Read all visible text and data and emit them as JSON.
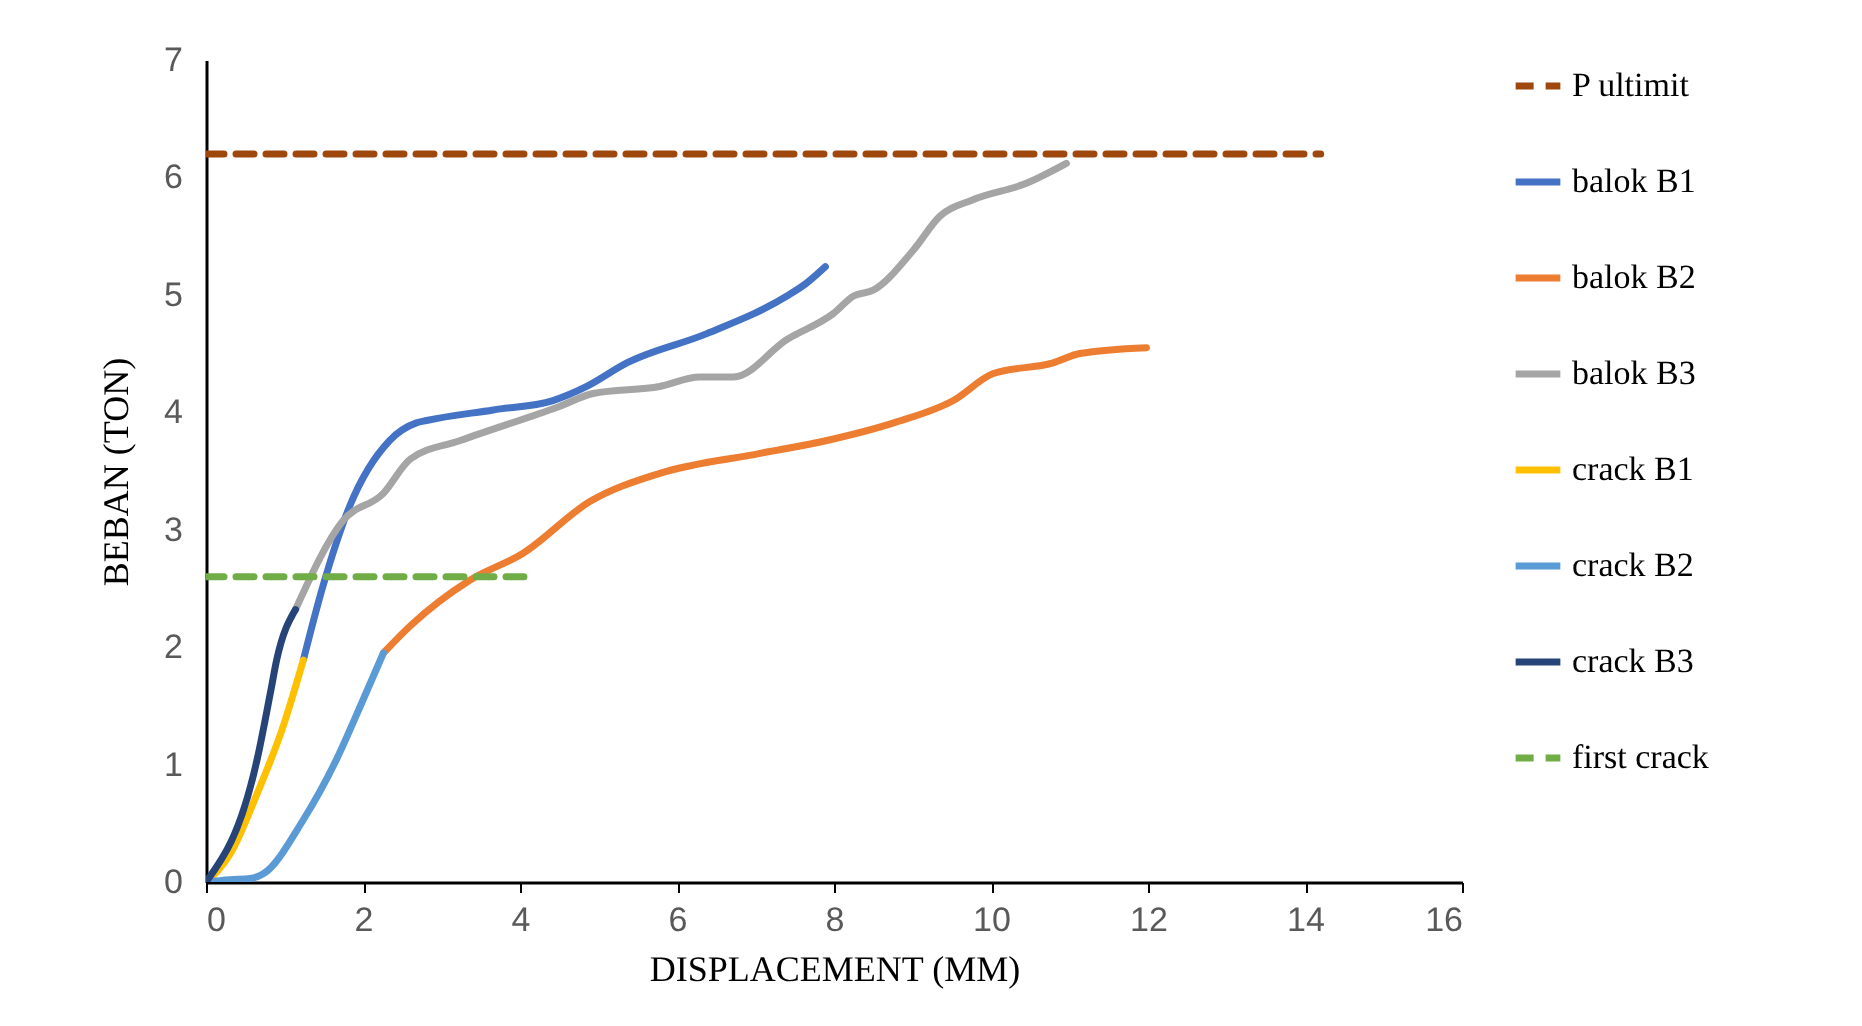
{
  "chart_data": {
    "type": "line",
    "xlabel": "DISPLACEMENT (MM)",
    "ylabel": "BEBAN (TON)",
    "xlim": [
      0,
      16
    ],
    "xticks": [
      0,
      2,
      4,
      6,
      8,
      10,
      12,
      14,
      16
    ],
    "ylim": [
      0,
      7
    ],
    "yticks": [
      0,
      1,
      2,
      3,
      4,
      5,
      6,
      7
    ],
    "grid": false,
    "legend": "right",
    "series": [
      {
        "name": "P ultimit",
        "color": "#9e480e",
        "line_style": "dashed",
        "x": [
          0,
          14.2
        ],
        "values": [
          6.2,
          6.2
        ]
      },
      {
        "name": "balok B1",
        "color": "#4472c4",
        "line_style": "solid",
        "x": [
          1.24,
          1.49,
          1.83,
          2.34,
          2.68,
          2.81,
          3.66,
          4.42,
          4.85,
          5.36,
          6.38,
          7.4,
          7.65,
          7.89
        ],
        "values": [
          1.89,
          2.52,
          3.2,
          3.76,
          3.91,
          3.93,
          4.02,
          4.1,
          4.22,
          4.42,
          4.67,
          4.99,
          5.1,
          5.24
        ]
      },
      {
        "name": "balok B2",
        "color": "#ed7d31",
        "line_style": "solid",
        "x": [
          2.26,
          2.6,
          3.36,
          4.04,
          4.89,
          5.78,
          7.06,
          7.91,
          8.76,
          9.52,
          10.03,
          10.79,
          11.13,
          11.98
        ],
        "values": [
          1.95,
          2.18,
          2.57,
          2.8,
          3.24,
          3.48,
          3.65,
          3.76,
          3.91,
          4.1,
          4.33,
          4.42,
          4.5,
          4.55
        ]
      },
      {
        "name": "balok B3",
        "color": "#a5a5a5",
        "line_style": "solid",
        "x": [
          1.14,
          1.75,
          2.26,
          2.6,
          3.24,
          4.5,
          4.93,
          5.78,
          6.29,
          6.72,
          7.4,
          7.99,
          8.25,
          8.5,
          9.01,
          9.35,
          9.77,
          10.45,
          10.96
        ],
        "values": [
          2.32,
          3.08,
          3.31,
          3.6,
          3.76,
          4.05,
          4.16,
          4.22,
          4.3,
          4.3,
          4.62,
          4.84,
          4.99,
          5.04,
          5.38,
          5.67,
          5.81,
          5.95,
          6.12
        ]
      },
      {
        "name": "crack B1",
        "color": "#ffc000",
        "line_style": "solid",
        "x": [
          0,
          0.31,
          0.65,
          0.98,
          1.24
        ],
        "values": [
          0,
          0.24,
          0.75,
          1.32,
          1.89
        ]
      },
      {
        "name": "crack B2",
        "color": "#5b9bd5",
        "line_style": "solid",
        "x": [
          0,
          0.3,
          0.56,
          0.73,
          1.24,
          1.66,
          2.0,
          2.26
        ],
        "values": [
          0,
          0.02,
          0.03,
          0.07,
          0.53,
          1.04,
          1.55,
          1.95
        ]
      },
      {
        "name": "crack B3",
        "color": "#264478",
        "line_style": "solid",
        "x": [
          0,
          0.65,
          0.82,
          0.9,
          1.14
        ],
        "values": [
          0,
          1.04,
          1.61,
          1.89,
          2.32
        ]
      },
      {
        "name": "first crack",
        "color": "#70ad47",
        "line_style": "dashed",
        "x": [
          0,
          4.05
        ],
        "values": [
          2.6,
          2.6
        ]
      }
    ]
  }
}
